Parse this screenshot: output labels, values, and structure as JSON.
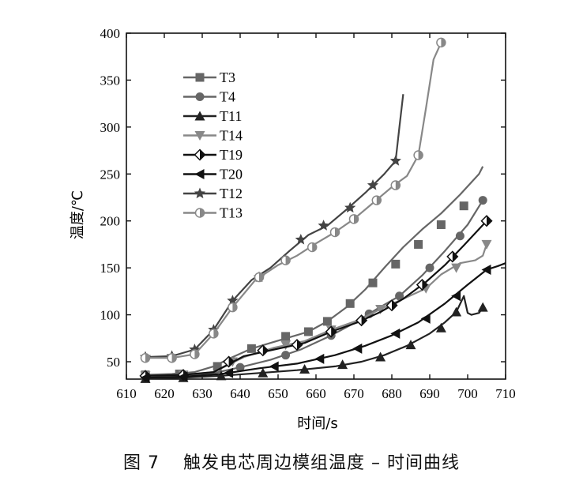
{
  "figure": {
    "caption_number": "图 7",
    "caption_text": "触发电芯周边模组温度 – 时间曲线"
  },
  "chart_data": {
    "type": "line",
    "title": "",
    "xlabel": "时间/s",
    "ylabel": "温度/℃",
    "xlim": [
      610,
      710
    ],
    "ylim": [
      32,
      400
    ],
    "x_ticks": [
      610,
      620,
      630,
      640,
      650,
      660,
      670,
      680,
      690,
      700,
      710
    ],
    "y_ticks": [
      50,
      100,
      150,
      200,
      250,
      300,
      350,
      400
    ],
    "grid": false,
    "legend_position": "top-left",
    "series": [
      {
        "name": "T3",
        "marker": "square",
        "color": "#666666",
        "x": [
          615,
          622,
          628,
          633,
          638,
          643,
          648,
          653,
          658,
          663,
          668,
          673,
          678,
          683,
          688,
          693,
          698,
          703,
          704
        ],
        "y": [
          36,
          37,
          39,
          45,
          55,
          64,
          70,
          76,
          82,
          93,
          108,
          127,
          150,
          172,
          191,
          208,
          228,
          250,
          258
        ],
        "markers_x": [
          615,
          624,
          634,
          643,
          652,
          658,
          663,
          669,
          675,
          681,
          687,
          693,
          699
        ],
        "markers_y": [
          36,
          37,
          45,
          64,
          77,
          82,
          93,
          112,
          134,
          154,
          175,
          196,
          216
        ]
      },
      {
        "name": "T4",
        "marker": "circle",
        "color": "#666666",
        "x": [
          615,
          625,
          632,
          640,
          648,
          656,
          664,
          670,
          676,
          682,
          688,
          694,
          700,
          704
        ],
        "y": [
          34,
          35,
          37,
          44,
          52,
          63,
          78,
          91,
          106,
          120,
          142,
          168,
          196,
          222
        ],
        "markers_x": [
          615,
          625,
          640,
          652,
          664,
          674,
          682,
          690,
          698,
          704
        ],
        "markers_y": [
          34,
          35,
          44,
          57,
          78,
          101,
          120,
          150,
          184,
          222
        ]
      },
      {
        "name": "T11",
        "marker": "triangle-up",
        "color": "#222222",
        "x": [
          615,
          625,
          635,
          645,
          655,
          665,
          672,
          678,
          684,
          690,
          694,
          697,
          699,
          700,
          701,
          703,
          704
        ],
        "y": [
          32,
          33,
          35,
          38,
          41,
          45,
          50,
          57,
          67,
          80,
          92,
          103,
          120,
          102,
          100,
          102,
          108
        ],
        "markers_x": [
          615,
          625,
          635,
          646,
          657,
          667,
          677,
          685,
          693,
          697,
          704
        ],
        "markers_y": [
          32,
          33,
          35,
          38,
          42,
          47,
          55,
          68,
          86,
          103,
          108
        ]
      },
      {
        "name": "T14",
        "marker": "triangle-down",
        "color": "#888888",
        "x": [
          615,
          625,
          633,
          641,
          649,
          657,
          664,
          671,
          677,
          683,
          689,
          693,
          698,
          702,
          704,
          705
        ],
        "y": [
          35,
          36,
          39,
          55,
          65,
          72,
          84,
          94,
          106,
          117,
          128,
          143,
          155,
          158,
          163,
          175
        ],
        "markers_x": [
          615,
          625,
          638,
          652,
          664,
          677,
          689,
          697,
          705
        ],
        "markers_y": [
          35,
          36,
          50,
          68,
          84,
          106,
          128,
          150,
          175
        ]
      },
      {
        "name": "T19",
        "marker": "diamond-half",
        "color": "#111111",
        "x": [
          615,
          625,
          633,
          641,
          649,
          657,
          664,
          671,
          677,
          683,
          689,
          694,
          699,
          705
        ],
        "y": [
          35,
          36,
          39,
          56,
          63,
          70,
          82,
          92,
          103,
          117,
          135,
          153,
          174,
          200
        ],
        "markers_x": [
          615,
          625,
          637,
          646,
          655,
          664,
          672,
          680,
          688,
          696,
          705
        ],
        "markers_y": [
          35,
          36,
          50,
          62,
          68,
          82,
          94,
          110,
          132,
          162,
          200
        ]
      },
      {
        "name": "T20",
        "marker": "triangle-left",
        "color": "#111111",
        "x": [
          615,
          625,
          635,
          645,
          655,
          665,
          673,
          680,
          687,
          694,
          700,
          705,
          708,
          710
        ],
        "y": [
          33,
          34,
          37,
          43,
          48,
          57,
          67,
          78,
          92,
          112,
          132,
          148,
          152,
          155
        ],
        "markers_x": [
          615,
          625,
          637,
          649,
          661,
          671,
          681,
          689,
          697,
          705
        ],
        "markers_y": [
          33,
          34,
          38,
          45,
          53,
          64,
          80,
          96,
          120,
          148
        ]
      },
      {
        "name": "T12",
        "marker": "star",
        "color": "#444444",
        "x": [
          615,
          622,
          628,
          633,
          638,
          643,
          648,
          653,
          658,
          663,
          668,
          673,
          678,
          681,
          682,
          683
        ],
        "y": [
          55,
          56,
          63,
          84,
          115,
          137,
          150,
          168,
          185,
          195,
          212,
          230,
          250,
          264,
          300,
          335
        ],
        "markers_x": [
          615,
          622,
          628,
          633,
          638,
          645,
          656,
          662,
          669,
          675,
          681
        ],
        "markers_y": [
          55,
          56,
          63,
          84,
          115,
          140,
          180,
          195,
          214,
          238,
          264
        ]
      },
      {
        "name": "T13",
        "marker": "circle-half",
        "color": "#888888",
        "x": [
          615,
          622,
          628,
          633,
          638,
          644,
          650,
          655,
          660,
          665,
          670,
          675,
          680,
          684,
          687,
          689,
          691,
          693
        ],
        "y": [
          54,
          54,
          58,
          80,
          108,
          137,
          153,
          163,
          176,
          188,
          202,
          219,
          236,
          248,
          270,
          320,
          372,
          390
        ],
        "markers_x": [
          615,
          622,
          628,
          633,
          638,
          645,
          652,
          659,
          665,
          670,
          676,
          681,
          687,
          693
        ],
        "markers_y": [
          54,
          54,
          58,
          80,
          108,
          140,
          158,
          172,
          188,
          202,
          222,
          238,
          270,
          390
        ]
      }
    ]
  }
}
